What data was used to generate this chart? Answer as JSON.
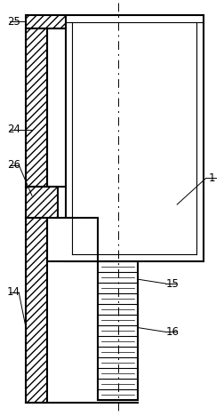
{
  "fig_width": 2.52,
  "fig_height": 4.68,
  "dpi": 100,
  "bg_color": "#ffffff",
  "line_color": "#000000"
}
